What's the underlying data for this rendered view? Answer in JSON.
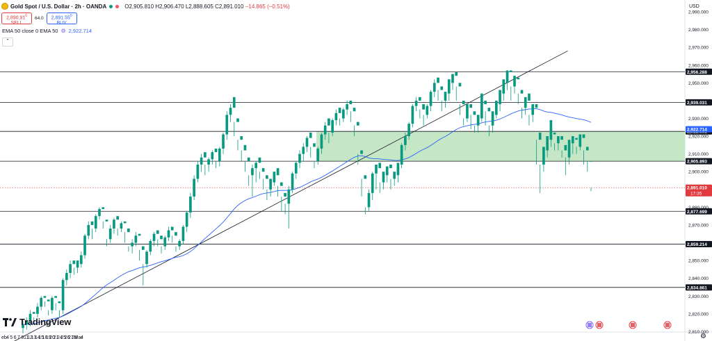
{
  "header": {
    "title": "Gold Spot / U.S. Dollar · 2h · OANDA",
    "ohlc_text": "O2,905.810 H2,906.470 L2,888.605 C2,891.010",
    "change_text": "−14.865 (−0.51%)"
  },
  "trade": {
    "sell_price": "2,890.91",
    "sell_sup": "0",
    "sell_label": "SELL",
    "spread": "64.0",
    "buy_price": "2,891.55",
    "buy_sup": "0",
    "buy_label": "BUY"
  },
  "indicator": {
    "label": "EMA 50 close 0 EMA 50",
    "value": "2,922.714"
  },
  "axis": {
    "currency": "USD"
  },
  "branding": {
    "logo_text": "TradingView"
  },
  "colors": {
    "up": "#089981",
    "down": "#e03a3e",
    "ema": "#2962ff",
    "zone": "#b2dfb2"
  },
  "chart_data": {
    "type": "candlestick",
    "ylim": [
      2805,
      2995
    ],
    "y_ticks": [
      2810,
      2820,
      2830,
      2840,
      2850,
      2860,
      2870,
      2880,
      2890,
      2900,
      2910,
      2920,
      2930,
      2940,
      2950,
      2960,
      2970,
      2980,
      2990
    ],
    "x_tick_labels": [
      "eb",
      "4",
      "5",
      "6",
      "7",
      "9",
      "11",
      "12",
      "13",
      "14",
      "15",
      "18",
      "19",
      "20",
      "21",
      "24",
      "25",
      "26",
      "27",
      "28",
      "Mar",
      "4"
    ],
    "horizontal_levels": [
      {
        "value": 2956.288,
        "label": "2,956.288"
      },
      {
        "value": 2939.031,
        "label": "2,939.031"
      },
      {
        "value": 2922.692,
        "label": "2,922.692"
      },
      {
        "value": 2905.893,
        "label": "2,905.893"
      },
      {
        "value": 2877.699,
        "label": "2,877.699"
      },
      {
        "value": 2859.214,
        "label": "2,859.214"
      },
      {
        "value": 2834.861,
        "label": "2,834.861"
      }
    ],
    "support_zone": [
      2905.893,
      2922.692
    ],
    "trendline": [
      {
        "x": 0.0,
        "y": 2801
      },
      {
        "x": 159.5,
        "y": 2968
      }
    ],
    "last_price": {
      "value": 2891.01,
      "label": "2,891.010",
      "countdown": "17:35"
    },
    "ema_last": {
      "value": 2922.714,
      "label": "2,922.714"
    },
    "candles_ohlc": [
      [
        2812,
        2816,
        2809,
        2814
      ],
      [
        2814,
        2818,
        2811,
        2816
      ],
      [
        2816,
        2822,
        2813,
        2820
      ],
      [
        2820,
        2818,
        2815,
        2821
      ],
      [
        2820,
        2826,
        2818,
        2824
      ],
      [
        2824,
        2830,
        2822,
        2829
      ],
      [
        2829,
        2827,
        2824,
        2830
      ],
      [
        2827,
        2822,
        2819,
        2828
      ],
      [
        2822,
        2830,
        2820,
        2829
      ],
      [
        2829,
        2826,
        2822,
        2830
      ],
      [
        2826,
        2822,
        2818,
        2827
      ],
      [
        2822,
        2840,
        2820,
        2839
      ],
      [
        2839,
        2845,
        2836,
        2843
      ],
      [
        2843,
        2850,
        2840,
        2848
      ],
      [
        2848,
        2846,
        2842,
        2850
      ],
      [
        2846,
        2848,
        2843,
        2850
      ],
      [
        2848,
        2855,
        2846,
        2853
      ],
      [
        2853,
        2865,
        2851,
        2864
      ],
      [
        2864,
        2872,
        2862,
        2870
      ],
      [
        2870,
        2868,
        2862,
        2872
      ],
      [
        2868,
        2876,
        2866,
        2875
      ],
      [
        2875,
        2880,
        2873,
        2879
      ],
      [
        2879,
        2872,
        2868,
        2880
      ],
      [
        2872,
        2862,
        2858,
        2873
      ],
      [
        2862,
        2870,
        2860,
        2868
      ],
      [
        2868,
        2874,
        2865,
        2873
      ],
      [
        2873,
        2868,
        2864,
        2875
      ],
      [
        2868,
        2872,
        2866,
        2871
      ],
      [
        2871,
        2866,
        2860,
        2872
      ],
      [
        2866,
        2858,
        2855,
        2868
      ],
      [
        2858,
        2862,
        2854,
        2860
      ],
      [
        2860,
        2866,
        2858,
        2864
      ],
      [
        2864,
        2856,
        2850,
        2865
      ],
      [
        2856,
        2848,
        2836,
        2858
      ],
      [
        2848,
        2856,
        2846,
        2855
      ],
      [
        2855,
        2862,
        2853,
        2861
      ],
      [
        2861,
        2866,
        2858,
        2865
      ],
      [
        2865,
        2862,
        2858,
        2867
      ],
      [
        2862,
        2858,
        2854,
        2864
      ],
      [
        2858,
        2864,
        2856,
        2863
      ],
      [
        2863,
        2869,
        2861,
        2867
      ],
      [
        2867,
        2864,
        2860,
        2869
      ],
      [
        2864,
        2858,
        2855,
        2866
      ],
      [
        2858,
        2862,
        2856,
        2861
      ],
      [
        2861,
        2870,
        2859,
        2869
      ],
      [
        2869,
        2878,
        2866,
        2877
      ],
      [
        2877,
        2888,
        2874,
        2886
      ],
      [
        2886,
        2898,
        2884,
        2896
      ],
      [
        2896,
        2906,
        2894,
        2904
      ],
      [
        2904,
        2910,
        2900,
        2908
      ],
      [
        2908,
        2904,
        2898,
        2911
      ],
      [
        2904,
        2908,
        2900,
        2907
      ],
      [
        2907,
        2912,
        2904,
        2911
      ],
      [
        2911,
        2906,
        2902,
        2913
      ],
      [
        2906,
        2914,
        2903,
        2913
      ],
      [
        2913,
        2922,
        2910,
        2921
      ],
      [
        2921,
        2934,
        2918,
        2932
      ],
      [
        2932,
        2938,
        2928,
        2936
      ],
      [
        2936,
        2928,
        2920,
        2942
      ],
      [
        2928,
        2918,
        2912,
        2930
      ],
      [
        2918,
        2912,
        2906,
        2920
      ],
      [
        2912,
        2906,
        2900,
        2915
      ],
      [
        2906,
        2898,
        2892,
        2908
      ],
      [
        2898,
        2904,
        2886,
        2902
      ],
      [
        2902,
        2906,
        2894,
        2905
      ],
      [
        2905,
        2900,
        2896,
        2908
      ],
      [
        2900,
        2896,
        2890,
        2902
      ],
      [
        2896,
        2890,
        2884,
        2898
      ],
      [
        2890,
        2894,
        2886,
        2896
      ],
      [
        2894,
        2898,
        2892,
        2900
      ],
      [
        2898,
        2892,
        2886,
        2902
      ],
      [
        2892,
        2886,
        2878,
        2894
      ],
      [
        2886,
        2882,
        2876,
        2888
      ],
      [
        2882,
        2892,
        2868,
        2890
      ],
      [
        2890,
        2900,
        2888,
        2899
      ],
      [
        2899,
        2906,
        2896,
        2905
      ],
      [
        2905,
        2912,
        2902,
        2910
      ],
      [
        2910,
        2916,
        2906,
        2914
      ],
      [
        2914,
        2920,
        2911,
        2919
      ],
      [
        2919,
        2914,
        2908,
        2922
      ],
      [
        2914,
        2906,
        2902,
        2916
      ],
      [
        2906,
        2914,
        2904,
        2913
      ],
      [
        2913,
        2922,
        2910,
        2921
      ],
      [
        2921,
        2928,
        2918,
        2926
      ],
      [
        2926,
        2922,
        2916,
        2930
      ],
      [
        2922,
        2930,
        2920,
        2929
      ],
      [
        2929,
        2935,
        2926,
        2933
      ],
      [
        2933,
        2930,
        2926,
        2936
      ],
      [
        2930,
        2936,
        2928,
        2935
      ],
      [
        2935,
        2940,
        2932,
        2938
      ],
      [
        2938,
        2934,
        2928,
        2940
      ],
      [
        2934,
        2926,
        2920,
        2936
      ],
      [
        2926,
        2910,
        2904,
        2928
      ],
      [
        2910,
        2896,
        2886,
        2912
      ],
      [
        2896,
        2880,
        2876,
        2898
      ],
      [
        2880,
        2890,
        2878,
        2888
      ],
      [
        2888,
        2900,
        2884,
        2899
      ],
      [
        2899,
        2902,
        2890,
        2904
      ],
      [
        2902,
        2894,
        2888,
        2905
      ],
      [
        2894,
        2898,
        2890,
        2900
      ],
      [
        2898,
        2902,
        2894,
        2903
      ],
      [
        2902,
        2896,
        2890,
        2904
      ],
      [
        2896,
        2898,
        2892,
        2900
      ],
      [
        2898,
        2904,
        2894,
        2905
      ],
      [
        2904,
        2916,
        2902,
        2915
      ],
      [
        2915,
        2922,
        2912,
        2920
      ],
      [
        2920,
        2928,
        2918,
        2927
      ],
      [
        2927,
        2938,
        2925,
        2937
      ],
      [
        2937,
        2942,
        2934,
        2940
      ],
      [
        2940,
        2935,
        2930,
        2942
      ],
      [
        2935,
        2932,
        2926,
        2938
      ],
      [
        2932,
        2938,
        2930,
        2937
      ],
      [
        2937,
        2946,
        2934,
        2945
      ],
      [
        2945,
        2952,
        2942,
        2950
      ],
      [
        2950,
        2946,
        2940,
        2953
      ],
      [
        2946,
        2940,
        2934,
        2948
      ],
      [
        2940,
        2944,
        2936,
        2945
      ],
      [
        2944,
        2950,
        2940,
        2952
      ],
      [
        2950,
        2954,
        2946,
        2955
      ],
      [
        2954,
        2948,
        2940,
        2956
      ],
      [
        2948,
        2938,
        2932,
        2950
      ],
      [
        2938,
        2930,
        2926,
        2940
      ],
      [
        2930,
        2936,
        2928,
        2938
      ],
      [
        2936,
        2932,
        2924,
        2938
      ],
      [
        2932,
        2926,
        2922,
        2934
      ],
      [
        2926,
        2930,
        2922,
        2932
      ],
      [
        2930,
        2938,
        2928,
        2944
      ],
      [
        2938,
        2934,
        2926,
        2940
      ],
      [
        2934,
        2926,
        2920,
        2936
      ],
      [
        2926,
        2932,
        2922,
        2934
      ],
      [
        2932,
        2938,
        2930,
        2940
      ],
      [
        2938,
        2944,
        2934,
        2946
      ],
      [
        2944,
        2950,
        2940,
        2952
      ],
      [
        2950,
        2956,
        2946,
        2957
      ],
      [
        2956,
        2948,
        2940,
        2957
      ],
      [
        2948,
        2952,
        2944,
        2954
      ],
      [
        2952,
        2944,
        2938,
        2953
      ],
      [
        2944,
        2936,
        2930,
        2946
      ],
      [
        2936,
        2940,
        2932,
        2942
      ],
      [
        2940,
        2932,
        2926,
        2944
      ],
      [
        2932,
        2936,
        2928,
        2938
      ],
      [
        2936,
        2918,
        2904,
        2938
      ],
      [
        2918,
        2904,
        2888,
        2922
      ],
      [
        2904,
        2912,
        2900,
        2914
      ],
      [
        2912,
        2918,
        2908,
        2920
      ],
      [
        2918,
        2921,
        2914,
        2929
      ],
      [
        2921,
        2916,
        2912,
        2922
      ],
      [
        2916,
        2918,
        2912,
        2920
      ],
      [
        2918,
        2912,
        2908,
        2920
      ],
      [
        2912,
        2908,
        2898,
        2915
      ],
      [
        2908,
        2916,
        2904,
        2918
      ],
      [
        2916,
        2918,
        2910,
        2920
      ],
      [
        2918,
        2914,
        2910,
        2919
      ],
      [
        2914,
        2919,
        2912,
        2921
      ],
      [
        2919,
        2912,
        2904,
        2921
      ],
      [
        2912,
        2906,
        2900,
        2914
      ],
      [
        2906,
        2891,
        2889,
        2906
      ]
    ]
  }
}
